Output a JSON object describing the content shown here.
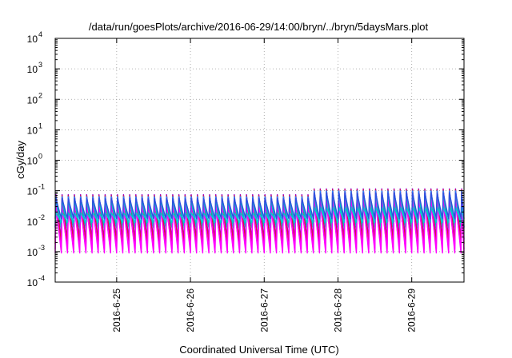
{
  "chart_data": {
    "type": "line",
    "title": "/data/run/goesPlots/archive/2016-06-29/14:00/bryn/../bryn/5daysMars.plot",
    "xlabel": "Coordinated Universal Time (UTC)",
    "ylabel": "cGy/day",
    "yscale": "log",
    "ylim": [
      0.0001,
      10000
    ],
    "xlim": [
      "2016-06-24T04:00",
      "2016-06-29T17:00"
    ],
    "grid": true,
    "legend": "none",
    "x_ticks": [
      {
        "at": "2016-06-25T00:00",
        "label": "2016-6-25"
      },
      {
        "at": "2016-06-26T00:00",
        "label": "2016-6-26"
      },
      {
        "at": "2016-06-27T00:00",
        "label": "2016-6-27"
      },
      {
        "at": "2016-06-28T00:00",
        "label": "2016-6-28"
      },
      {
        "at": "2016-06-29T00:00",
        "label": "2016-6-29"
      }
    ],
    "y_ticks": [
      {
        "value": 0.0001,
        "base": "10",
        "exp": "-4"
      },
      {
        "value": 0.001,
        "base": "10",
        "exp": "-3"
      },
      {
        "value": 0.01,
        "base": "10",
        "exp": "-2"
      },
      {
        "value": 0.1,
        "base": "10",
        "exp": "-1"
      },
      {
        "value": 1,
        "base": "10",
        "exp": "0"
      },
      {
        "value": 10,
        "base": "10",
        "exp": "1"
      },
      {
        "value": 100,
        "base": "10",
        "exp": "2"
      },
      {
        "value": 1000,
        "base": "10",
        "exp": "3"
      },
      {
        "value": 10000,
        "base": "10",
        "exp": "4"
      }
    ],
    "sawtooth": {
      "start": "2016-06-24T04:00",
      "period_hours": 2,
      "segments": [
        {
          "from": "2016-06-24T04:00",
          "to": "2016-06-27T16:00",
          "peak": 0.055
        },
        {
          "from": "2016-06-27T16:00",
          "to": "2016-06-29T17:00",
          "peak": 0.085
        }
      ]
    },
    "series": [
      {
        "color": "#9400d3",
        "peak_factor": 1.35,
        "trough": 0.0025
      },
      {
        "color": "#dc143c",
        "peak_factor": 1.25,
        "trough": 0.0018
      },
      {
        "color": "#1e90ff",
        "peak_factor": 1.15,
        "trough": 0.0065
      },
      {
        "color": "#00bfbf",
        "peak_factor": 0.8,
        "trough": 0.006
      },
      {
        "color": "#ff00ff",
        "peak_factor": 0.6,
        "trough": 0.0009
      },
      {
        "color": "#ff00ff",
        "peak_factor": 0.45,
        "trough": 0.0012
      },
      {
        "color": "#00ced1",
        "peak_factor": 0.35,
        "trough": 0.009
      },
      {
        "color": "#2f4fdf",
        "peak_factor": 1.0,
        "trough": 0.012
      }
    ]
  }
}
